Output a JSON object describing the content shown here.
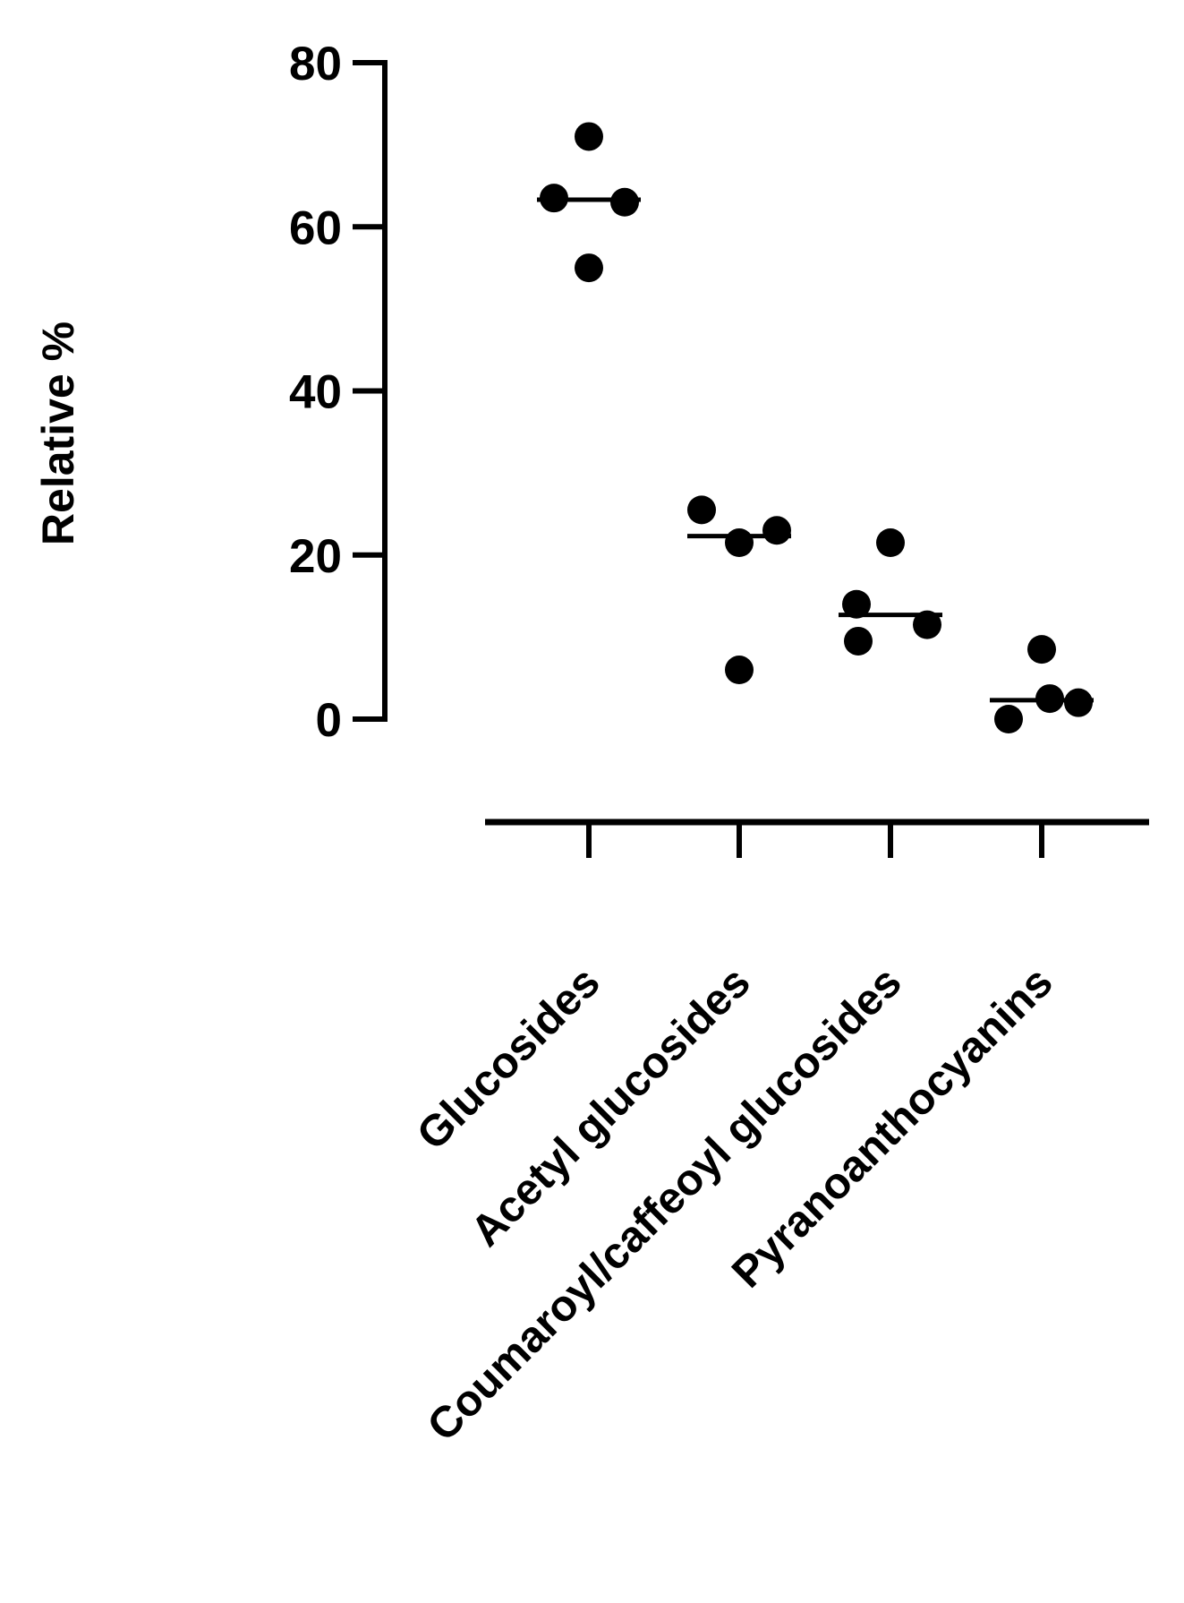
{
  "chart_data": {
    "type": "scatter",
    "title": "",
    "xlabel": "",
    "ylabel": "Relative %",
    "ylim": [
      0,
      80
    ],
    "yticks": [
      0,
      20,
      40,
      60,
      80
    ],
    "grid": false,
    "legend": "none",
    "colors": {
      "points": "#000000",
      "axes": "#000000",
      "background": "#ffffff"
    },
    "categories": [
      "Glucosides",
      "Acetyl glucosides",
      "Coumaroyl/caffeoyl glucosides",
      "Pyranoanthocyanins"
    ],
    "series": [
      {
        "values": [
          [
            71,
            63.5,
            63,
            55
          ],
          [
            25.5,
            23,
            21.5,
            6
          ],
          [
            21.5,
            14,
            11.5,
            9.5
          ],
          [
            8.5,
            2.5,
            2,
            0
          ]
        ]
      }
    ],
    "medians": [
      63.3,
      22.3,
      12.7,
      2.3
    ]
  }
}
